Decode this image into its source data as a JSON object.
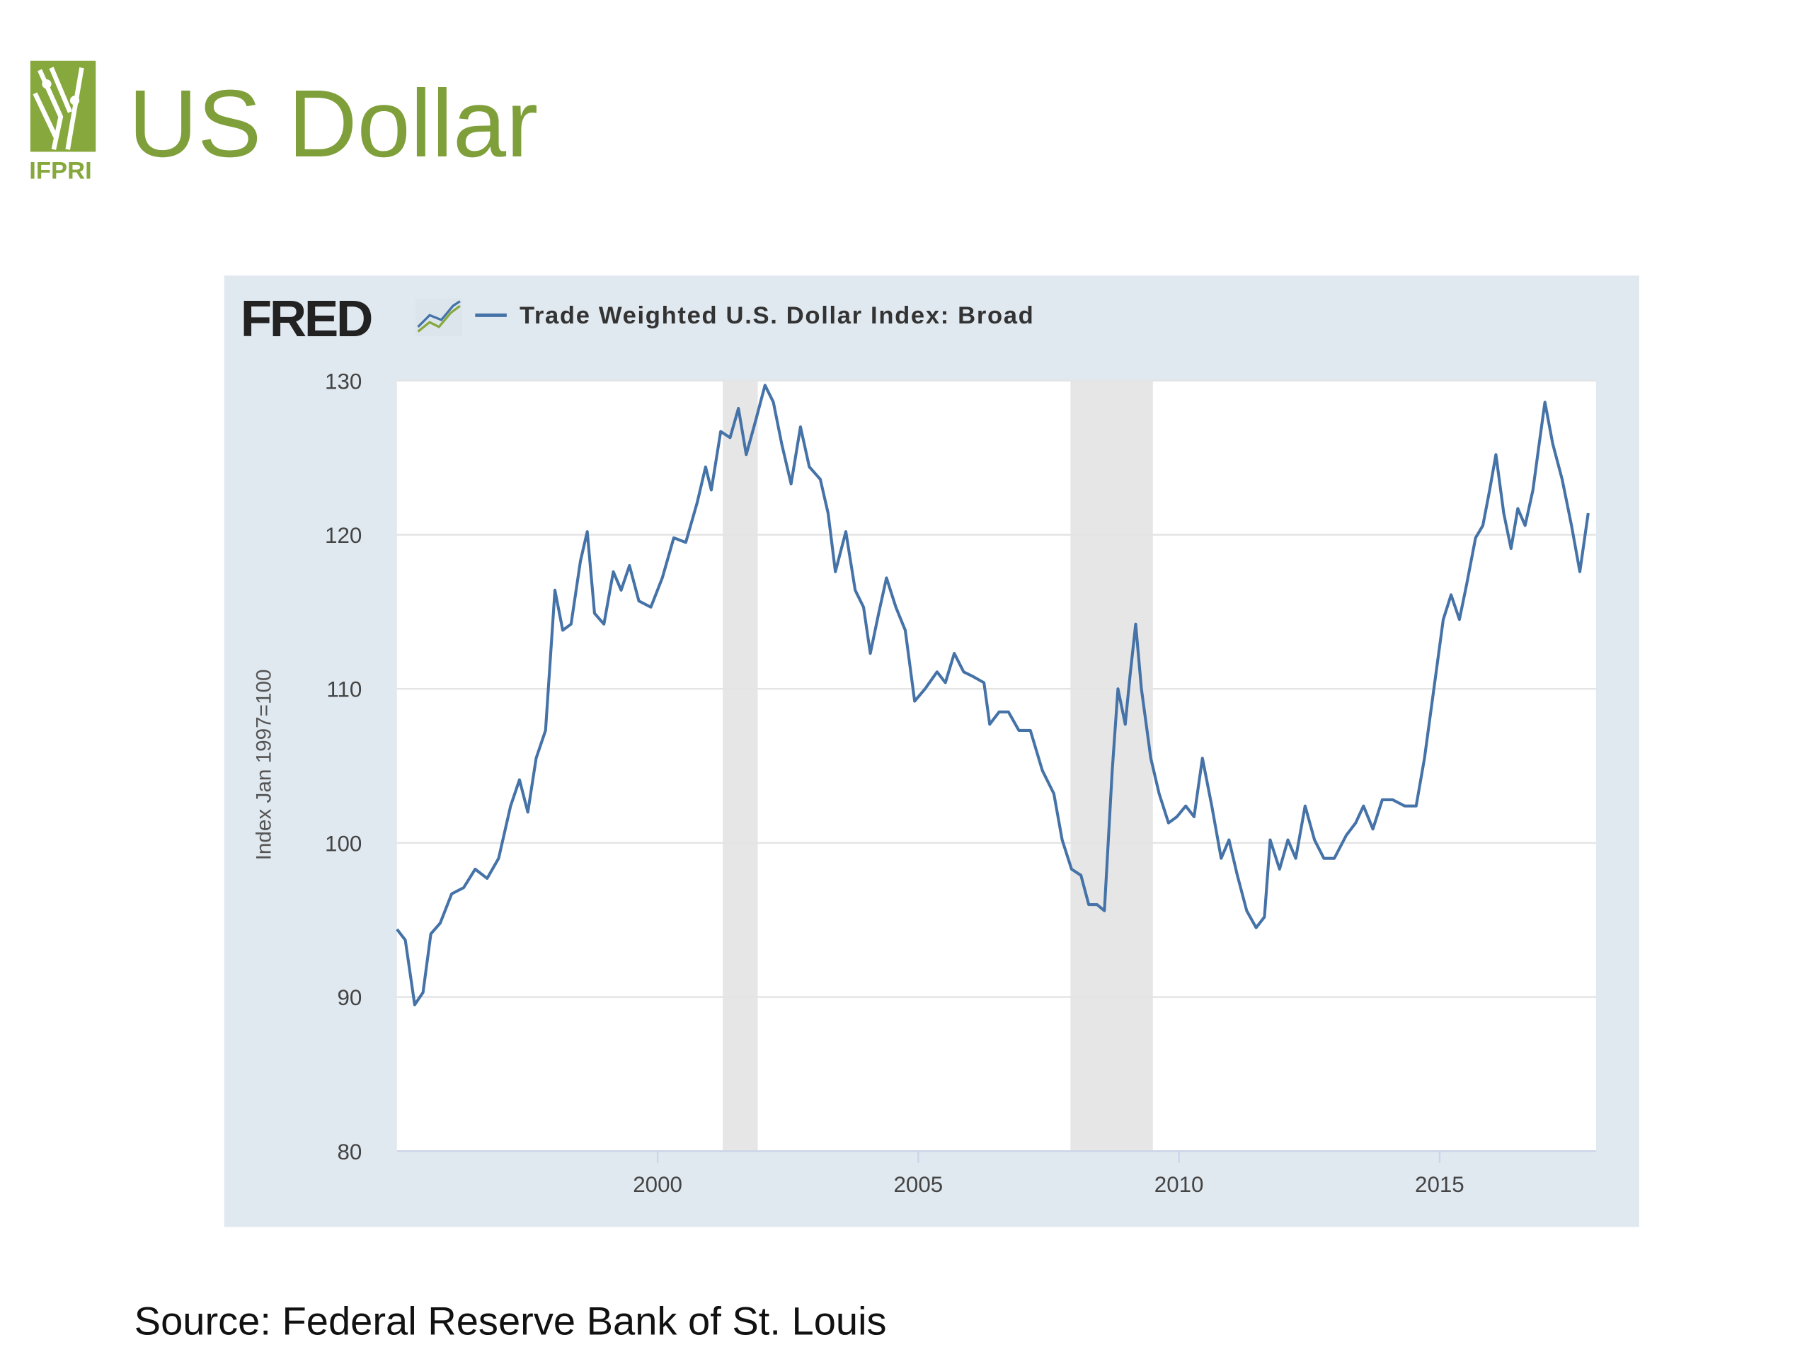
{
  "slide": {
    "title": "US Dollar",
    "logo_text": "IFPRI",
    "source": "Source:  Federal Reserve Bank of St. Louis"
  },
  "chart_data": {
    "type": "line",
    "brand": "FRED",
    "ylabel": "Index Jan 1997=100",
    "x": [
      1995.0,
      1995.16,
      1995.34,
      1995.5,
      1995.65,
      1995.83,
      1996.05,
      1996.28,
      1996.5,
      1996.73,
      1996.95,
      1997.18,
      1997.35,
      1997.51,
      1997.67,
      1997.85,
      1998.03,
      1998.18,
      1998.34,
      1998.52,
      1998.65,
      1998.79,
      1998.97,
      1999.15,
      1999.3,
      1999.46,
      1999.64,
      1999.87,
      2000.09,
      2000.31,
      2000.54,
      2000.76,
      2000.92,
      2001.03,
      2001.21,
      2001.39,
      2001.55,
      2001.7,
      2001.88,
      2002.06,
      2002.22,
      2002.38,
      2002.56,
      2002.74,
      2002.91,
      2003.12,
      2003.27,
      2003.41,
      2003.61,
      2003.79,
      2003.95,
      2004.08,
      2004.24,
      2004.39,
      2004.57,
      2004.75,
      2004.93,
      2005.13,
      2005.36,
      2005.52,
      2005.69,
      2005.87,
      2006.05,
      2006.26,
      2006.37,
      2006.55,
      2006.73,
      2006.93,
      2007.15,
      2007.38,
      2007.6,
      2007.76,
      2007.94,
      2008.12,
      2008.27,
      2008.43,
      2008.57,
      2008.72,
      2008.83,
      2008.97,
      2009.06,
      2009.17,
      2009.28,
      2009.46,
      2009.62,
      2009.8,
      2009.96,
      2010.13,
      2010.29,
      2010.45,
      2010.63,
      2010.81,
      2010.96,
      2011.12,
      2011.3,
      2011.48,
      2011.64,
      2011.75,
      2011.93,
      2012.09,
      2012.24,
      2012.42,
      2012.6,
      2012.78,
      2012.98,
      2013.21,
      2013.39,
      2013.54,
      2013.72,
      2013.9,
      2014.1,
      2014.33,
      2014.55,
      2014.71,
      2014.89,
      2015.07,
      2015.22,
      2015.38,
      2015.52,
      2015.69,
      2015.83,
      2015.96,
      2016.08,
      2016.23,
      2016.37,
      2016.5,
      2016.64,
      2016.79,
      2016.91,
      2017.02,
      2017.17,
      2017.35,
      2017.53,
      2017.69,
      2017.85
    ],
    "series": [
      {
        "name": "Trade Weighted U.S. Dollar Index: Broad",
        "color": "#4572a7",
        "values": [
          94.4,
          93.7,
          89.5,
          90.3,
          94.1,
          94.8,
          96.7,
          97.1,
          98.3,
          97.7,
          99.0,
          102.4,
          104.1,
          102.0,
          105.5,
          107.3,
          116.4,
          113.8,
          114.2,
          118.3,
          120.2,
          114.9,
          114.2,
          117.6,
          116.4,
          118.0,
          115.7,
          115.3,
          117.2,
          119.8,
          119.5,
          122.1,
          124.4,
          122.9,
          126.7,
          126.3,
          128.2,
          125.2,
          127.4,
          129.7,
          128.6,
          125.9,
          123.3,
          127.0,
          124.4,
          123.6,
          121.4,
          117.6,
          120.2,
          116.4,
          115.3,
          112.3,
          114.9,
          117.2,
          115.3,
          113.8,
          109.2,
          110.0,
          111.1,
          110.4,
          112.3,
          111.1,
          110.8,
          110.4,
          107.7,
          108.5,
          108.5,
          107.3,
          107.3,
          104.7,
          103.2,
          100.2,
          98.3,
          97.9,
          96.0,
          96.0,
          95.6,
          104.7,
          110.0,
          107.7,
          110.8,
          114.2,
          110.0,
          105.5,
          103.2,
          101.3,
          101.7,
          102.4,
          101.7,
          105.5,
          102.4,
          99.0,
          100.2,
          97.9,
          95.6,
          94.5,
          95.2,
          100.2,
          98.3,
          100.2,
          99.0,
          102.4,
          100.2,
          99.0,
          99.0,
          100.5,
          101.3,
          102.4,
          100.9,
          102.8,
          102.8,
          102.4,
          102.4,
          105.5,
          110.0,
          114.5,
          116.1,
          114.5,
          116.8,
          119.8,
          120.6,
          122.9,
          125.2,
          121.4,
          119.1,
          121.7,
          120.6,
          122.9,
          125.9,
          128.6,
          125.9,
          123.6,
          120.6,
          117.6,
          121.4
        ]
      }
    ],
    "shaded_periods": [
      [
        2001.25,
        2001.92
      ],
      [
        2007.92,
        2009.5
      ]
    ],
    "xlim": [
      1995,
      2018
    ],
    "xticks": [
      2000,
      2005,
      2010,
      2015
    ],
    "ylim": [
      80,
      130
    ],
    "yticks": [
      80,
      90,
      100,
      110,
      120,
      130
    ],
    "grid": true
  }
}
